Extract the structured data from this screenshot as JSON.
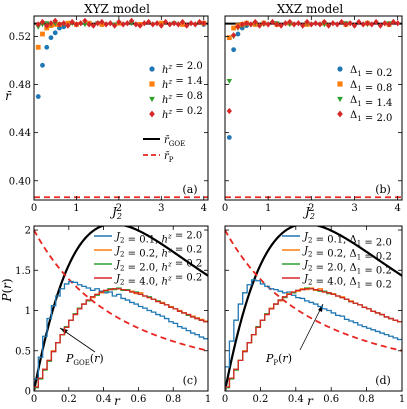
{
  "colors": {
    "blue": "#1f77b4",
    "orange": "#ff7f0e",
    "green": "#2ca02c",
    "red": "#d62728",
    "theory": "#000000",
    "poisson": "#e8251f"
  },
  "chart_data": [
    {
      "id": "a",
      "type": "scatter",
      "title": "XYZ model",
      "xlabel": "J_2",
      "ylabel": "r̄",
      "xlim": [
        0,
        4.1
      ],
      "ylim": [
        0.384,
        0.537
      ],
      "xticks": [
        0,
        1,
        2,
        3,
        4
      ],
      "yticks": [
        0.4,
        0.44,
        0.48,
        0.52
      ],
      "ytick_labels": [
        "0.40",
        "0.44",
        "0.48",
        "0.52"
      ],
      "panel_label": "(a)",
      "grid": false,
      "legend_placement": "center-right",
      "reference_lines": [
        {
          "name": "r̄_GOE",
          "value": 0.5307,
          "style": "solid",
          "color": "#000000"
        },
        {
          "name": "r̄_P",
          "value": 0.3863,
          "style": "dashed",
          "color": "#e8251f"
        }
      ],
      "series": [
        {
          "name": "h^z = 2.0",
          "marker": "circle",
          "color": "#1f77b4",
          "x": [
            0.1,
            0.2,
            0.3,
            0.4,
            0.5,
            0.6,
            0.7,
            0.8,
            1.0,
            1.3,
            1.6,
            2.0,
            2.5,
            3.0,
            3.5,
            4.0
          ],
          "y": [
            0.47,
            0.496,
            0.511,
            0.519,
            0.523,
            0.527,
            0.528,
            0.53,
            0.53,
            0.531,
            0.53,
            0.531,
            0.53,
            0.53,
            0.531,
            0.53
          ]
        },
        {
          "name": "h^z = 1.4",
          "marker": "square",
          "color": "#ff7f0e",
          "x": [
            0.1,
            0.2,
            0.3,
            0.4,
            0.5,
            0.6,
            0.8,
            1.0,
            1.3,
            1.6,
            2.0,
            2.5,
            3.0,
            3.5,
            4.0
          ],
          "y": [
            0.511,
            0.522,
            0.527,
            0.529,
            0.53,
            0.53,
            0.531,
            0.53,
            0.531,
            0.53,
            0.531,
            0.53,
            0.531,
            0.53,
            0.531
          ]
        },
        {
          "name": "h^z = 0.8",
          "marker": "triangle-down",
          "color": "#2ca02c",
          "x": [
            0.1,
            0.2,
            0.3,
            0.4,
            0.5,
            0.7,
            0.9,
            1.2,
            1.5,
            1.9,
            2.3,
            2.8,
            3.3,
            3.8
          ],
          "y": [
            0.528,
            0.53,
            0.531,
            0.53,
            0.531,
            0.53,
            0.531,
            0.53,
            0.531,
            0.53,
            0.531,
            0.53,
            0.531,
            0.53
          ]
        },
        {
          "name": "h^z = 0.2",
          "marker": "diamond",
          "color": "#d62728",
          "x": [
            0.1,
            0.2,
            0.3,
            0.4,
            0.5,
            0.6,
            0.7,
            0.8,
            0.9,
            1.0,
            1.1,
            1.2,
            1.3,
            1.4,
            1.5,
            1.6,
            1.7,
            1.8,
            1.9,
            2.0,
            2.1,
            2.2,
            2.3,
            2.4,
            2.5,
            2.6,
            2.7,
            2.8,
            2.9,
            3.0,
            3.1,
            3.2,
            3.3,
            3.4,
            3.5,
            3.6,
            3.7,
            3.8,
            3.9,
            4.0
          ],
          "y": [
            0.53,
            0.532,
            0.529,
            0.531,
            0.533,
            0.53,
            0.531,
            0.529,
            0.532,
            0.53,
            0.531,
            0.533,
            0.53,
            0.529,
            0.531,
            0.532,
            0.53,
            0.531,
            0.529,
            0.532,
            0.53,
            0.531,
            0.533,
            0.53,
            0.529,
            0.531,
            0.532,
            0.53,
            0.531,
            0.529,
            0.532,
            0.53,
            0.531,
            0.53,
            0.532,
            0.529,
            0.531,
            0.53,
            0.532,
            0.531
          ]
        }
      ]
    },
    {
      "id": "b",
      "type": "scatter",
      "title": "XXZ model",
      "xlabel": "J_2",
      "xlim": [
        0,
        4.1
      ],
      "ylim": [
        0.384,
        0.537
      ],
      "xticks": [
        0,
        1,
        2,
        3,
        4
      ],
      "yticks": [
        0.4,
        0.44,
        0.48,
        0.52
      ],
      "panel_label": "(b)",
      "grid": false,
      "legend_placement": "center-right",
      "reference_lines": [
        {
          "value": 0.5307,
          "style": "solid",
          "color": "#000000"
        },
        {
          "value": 0.3863,
          "style": "dashed",
          "color": "#e8251f"
        }
      ],
      "series": [
        {
          "name": "Δ_1 = 0.2",
          "marker": "circle",
          "color": "#1f77b4",
          "x": [
            0.1,
            0.2,
            0.3,
            0.4,
            0.5,
            0.7,
            0.9,
            1.2,
            1.5,
            1.9,
            2.3,
            2.8,
            3.3,
            3.8
          ],
          "y": [
            0.436,
            0.509,
            0.522,
            0.527,
            0.529,
            0.53,
            0.531,
            0.53,
            0.531,
            0.53,
            0.531,
            0.53,
            0.531,
            0.53
          ]
        },
        {
          "name": "Δ_1 = 0.8",
          "marker": "square",
          "color": "#ff7f0e",
          "x": [
            0.1,
            0.2,
            0.3,
            0.4,
            0.5,
            0.7,
            0.9,
            1.2,
            1.5,
            1.9,
            2.3,
            2.8,
            3.3,
            3.8
          ],
          "y": [
            0.519,
            0.527,
            0.529,
            0.53,
            0.531,
            0.53,
            0.531,
            0.53,
            0.531,
            0.53,
            0.531,
            0.53,
            0.531,
            0.53
          ]
        },
        {
          "name": "Δ_1 = 1.4",
          "marker": "triangle-down",
          "color": "#2ca02c",
          "x": [
            0.1,
            0.2,
            0.3,
            0.4,
            0.5,
            0.7,
            0.9,
            1.2,
            1.5,
            1.9,
            2.3,
            2.8,
            3.3,
            3.8
          ],
          "y": [
            0.483,
            0.52,
            0.527,
            0.529,
            0.53,
            0.531,
            0.53,
            0.531,
            0.53,
            0.531,
            0.53,
            0.531,
            0.53,
            0.531
          ]
        },
        {
          "name": "Δ_1 = 2.0",
          "marker": "diamond",
          "color": "#d62728",
          "x": [
            0.1,
            0.2,
            0.3,
            0.4,
            0.5,
            0.6,
            0.7,
            0.8,
            0.9,
            1.0,
            1.1,
            1.2,
            1.3,
            1.4,
            1.5,
            1.6,
            1.7,
            1.8,
            1.9,
            2.0,
            2.1,
            2.2,
            2.3,
            2.4,
            2.5,
            2.6,
            2.7,
            2.8,
            2.9,
            3.0,
            3.1,
            3.2,
            3.3,
            3.4,
            3.5,
            3.6,
            3.7,
            3.8,
            3.9,
            4.0
          ],
          "y": [
            0.458,
            0.521,
            0.528,
            0.53,
            0.531,
            0.53,
            0.532,
            0.529,
            0.531,
            0.53,
            0.532,
            0.53,
            0.529,
            0.531,
            0.532,
            0.53,
            0.531,
            0.529,
            0.532,
            0.53,
            0.531,
            0.53,
            0.532,
            0.529,
            0.531,
            0.53,
            0.532,
            0.53,
            0.531,
            0.529,
            0.532,
            0.53,
            0.531,
            0.53,
            0.532,
            0.529,
            0.531,
            0.53,
            0.532,
            0.531
          ]
        }
      ]
    },
    {
      "id": "c",
      "type": "line",
      "xlabel": "r",
      "ylabel": "P(r)",
      "xlim": [
        0,
        1
      ],
      "ylim": [
        0,
        2.05
      ],
      "xticks": [
        0,
        0.2,
        0.4,
        0.6,
        0.8,
        1
      ],
      "xtick_labels": [
        "0",
        "0.2",
        "0.4",
        "0.6",
        "0.8",
        "1"
      ],
      "yticks": [
        0,
        0.5,
        1,
        1.5,
        2
      ],
      "ytick_labels": [
        "0",
        "0.5",
        "1",
        "1.5",
        "2"
      ],
      "panel_label": "(c)",
      "annotation": "P_GOE(r)",
      "grid": false,
      "legend_placement": "top-right",
      "histogram_bins": 40,
      "curves": [
        {
          "kind": "P_GOE",
          "style": "solid",
          "color": "#000000"
        },
        {
          "kind": "P_P",
          "style": "dashed",
          "color": "#e8251f"
        }
      ],
      "series": [
        {
          "name": "J_2 = 0.1, h^z = 2.0",
          "color": "#1f77b4",
          "values": [
            0.15,
            0.42,
            0.68,
            0.9,
            1.06,
            1.18,
            1.27,
            1.33,
            1.36,
            1.35,
            1.32,
            1.3,
            1.28,
            1.25,
            1.27,
            1.24,
            1.22,
            1.23,
            1.18,
            1.2,
            1.15,
            1.13,
            1.1,
            1.08,
            1.05,
            1.03,
            1.0,
            0.98,
            0.95,
            0.93,
            0.9,
            0.86,
            0.84,
            0.8,
            0.78,
            0.75,
            0.72,
            0.7,
            0.67,
            0.65
          ]
        },
        {
          "name": "J_2 = 0.2, h^z = 0.2",
          "color": "#ff7f0e",
          "values": [
            0.05,
            0.16,
            0.27,
            0.38,
            0.5,
            0.6,
            0.7,
            0.79,
            0.88,
            0.96,
            1.02,
            1.08,
            1.13,
            1.16,
            1.2,
            1.22,
            1.25,
            1.26,
            1.27,
            1.27,
            1.26,
            1.25,
            1.24,
            1.21,
            1.22,
            1.18,
            1.16,
            1.14,
            1.12,
            1.1,
            1.07,
            1.05,
            1.02,
            1.0,
            0.97,
            0.95,
            0.93,
            0.91,
            0.89,
            0.87
          ]
        },
        {
          "name": "J_2 = 2.0, h^z = 0.2",
          "color": "#2ca02c",
          "values": [
            0.04,
            0.15,
            0.26,
            0.37,
            0.49,
            0.6,
            0.7,
            0.8,
            0.88,
            0.96,
            1.03,
            1.08,
            1.12,
            1.17,
            1.19,
            1.23,
            1.24,
            1.27,
            1.26,
            1.28,
            1.25,
            1.26,
            1.23,
            1.23,
            1.2,
            1.18,
            1.17,
            1.14,
            1.12,
            1.09,
            1.07,
            1.04,
            1.02,
            0.99,
            0.97,
            0.94,
            0.92,
            0.9,
            0.88,
            0.86
          ]
        },
        {
          "name": "J_2 = 4.0, h^z = 0.2",
          "color": "#d62728",
          "values": [
            0.05,
            0.16,
            0.27,
            0.38,
            0.49,
            0.6,
            0.7,
            0.79,
            0.88,
            0.95,
            1.02,
            1.08,
            1.13,
            1.17,
            1.2,
            1.23,
            1.25,
            1.26,
            1.27,
            1.27,
            1.26,
            1.25,
            1.23,
            1.22,
            1.2,
            1.18,
            1.16,
            1.14,
            1.11,
            1.09,
            1.07,
            1.04,
            1.02,
            0.99,
            0.97,
            0.95,
            0.92,
            0.9,
            0.88,
            0.86
          ]
        }
      ]
    },
    {
      "id": "d",
      "type": "line",
      "xlabel": "r",
      "xlim": [
        0,
        1
      ],
      "ylim": [
        0,
        2.05
      ],
      "xticks": [
        0,
        0.2,
        0.4,
        0.6,
        0.8,
        1
      ],
      "xtick_labels": [
        "0",
        "0.2",
        "0.4",
        "0.6",
        "0.8",
        "1"
      ],
      "yticks": [
        0,
        0.5,
        1,
        1.5,
        2
      ],
      "panel_label": "(d)",
      "annotation": "P_P(r)",
      "grid": false,
      "legend_placement": "top-right",
      "histogram_bins": 40,
      "curves": [
        {
          "kind": "P_GOE",
          "style": "solid",
          "color": "#000000"
        },
        {
          "kind": "P_P",
          "style": "dashed",
          "color": "#e8251f"
        }
      ],
      "series": [
        {
          "name": "J_2 = 0.1, Δ_1 = 2.0",
          "color": "#1f77b4",
          "values": [
            0.3,
            0.62,
            0.88,
            1.08,
            1.22,
            1.32,
            1.38,
            1.37,
            1.33,
            1.3,
            1.27,
            1.26,
            1.24,
            1.22,
            1.23,
            1.19,
            1.16,
            1.15,
            1.12,
            1.1,
            1.08,
            1.05,
            1.02,
            1.0,
            0.97,
            0.94,
            0.93,
            0.89,
            0.87,
            0.85,
            0.82,
            0.8,
            0.78,
            0.76,
            0.74,
            0.72,
            0.7,
            0.68,
            0.66,
            0.64
          ]
        },
        {
          "name": "J_2 = 0.2, Δ_1 = 0.2",
          "color": "#ff7f0e",
          "values": [
            0.05,
            0.16,
            0.27,
            0.38,
            0.5,
            0.6,
            0.7,
            0.79,
            0.88,
            0.96,
            1.03,
            1.08,
            1.12,
            1.17,
            1.21,
            1.23,
            1.24,
            1.27,
            1.26,
            1.28,
            1.25,
            1.27,
            1.23,
            1.22,
            1.21,
            1.18,
            1.17,
            1.14,
            1.12,
            1.09,
            1.07,
            1.04,
            1.02,
            0.99,
            0.97,
            0.95,
            0.92,
            0.9,
            0.88,
            0.86
          ]
        },
        {
          "name": "J_2 = 2.0, Δ_1 = 0.2",
          "color": "#2ca02c",
          "values": [
            0.04,
            0.15,
            0.26,
            0.38,
            0.49,
            0.6,
            0.7,
            0.8,
            0.88,
            0.96,
            1.02,
            1.08,
            1.13,
            1.16,
            1.2,
            1.22,
            1.25,
            1.26,
            1.28,
            1.27,
            1.26,
            1.24,
            1.24,
            1.21,
            1.2,
            1.18,
            1.16,
            1.14,
            1.11,
            1.09,
            1.07,
            1.04,
            1.02,
            0.99,
            0.97,
            0.95,
            0.92,
            0.9,
            0.88,
            0.86
          ]
        },
        {
          "name": "J_2 = 4.0, Δ_1 = 0.2",
          "color": "#d62728",
          "values": [
            0.05,
            0.16,
            0.27,
            0.38,
            0.49,
            0.6,
            0.7,
            0.79,
            0.88,
            0.95,
            1.02,
            1.08,
            1.13,
            1.17,
            1.2,
            1.23,
            1.25,
            1.26,
            1.27,
            1.27,
            1.26,
            1.25,
            1.23,
            1.22,
            1.2,
            1.18,
            1.16,
            1.14,
            1.11,
            1.09,
            1.07,
            1.04,
            1.02,
            0.99,
            0.97,
            0.95,
            0.92,
            0.9,
            0.88,
            0.86
          ]
        }
      ]
    }
  ]
}
